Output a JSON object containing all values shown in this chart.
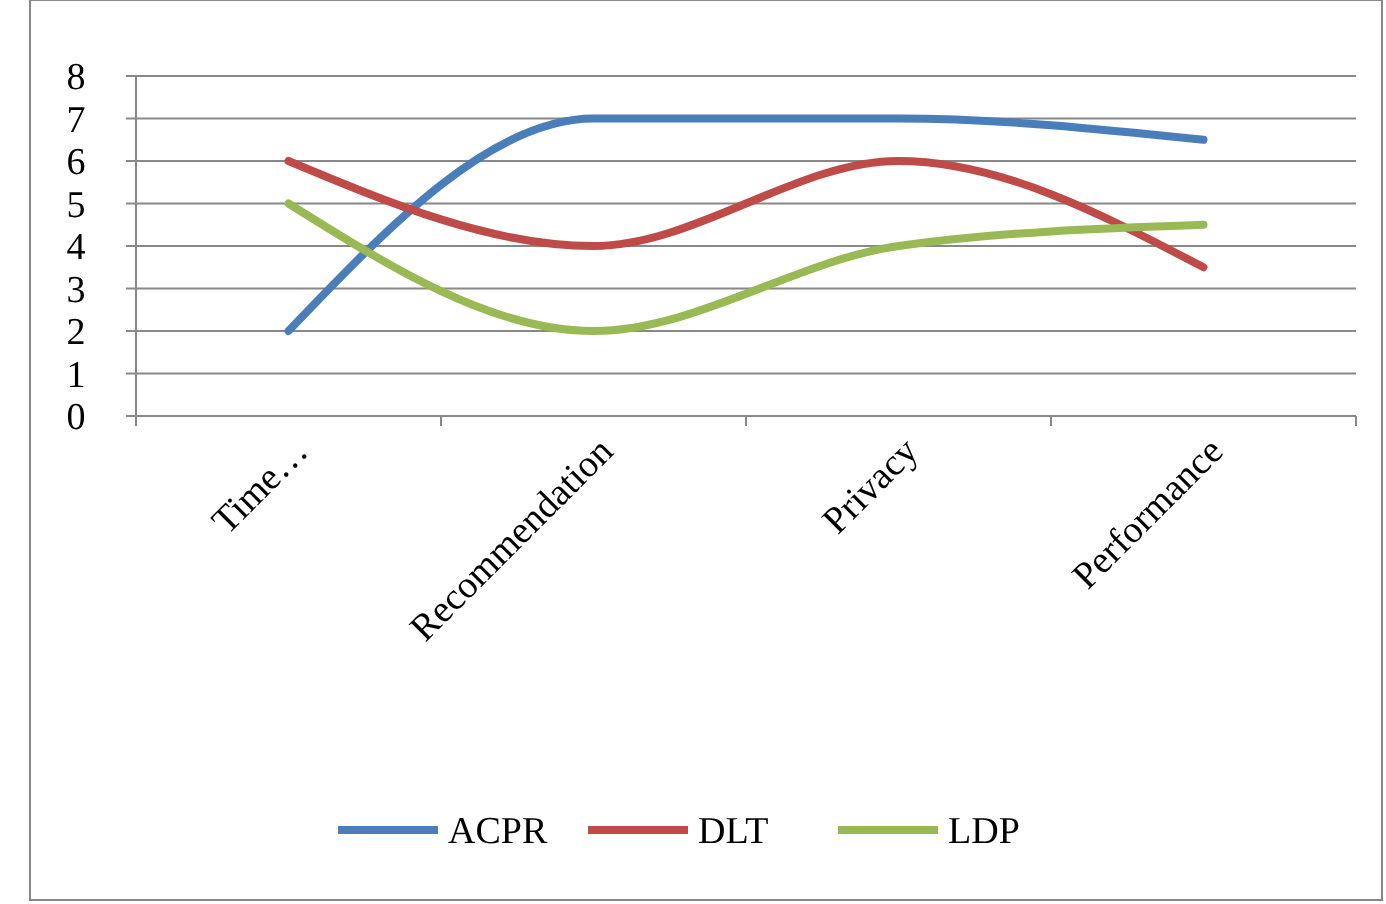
{
  "chart_data": {
    "type": "line",
    "categories": [
      "Time…",
      "Recommendation",
      "Privacy",
      "Performance"
    ],
    "series": [
      {
        "name": "ACPR",
        "color": "#4a7ebb",
        "values": [
          2,
          7,
          7,
          6.5
        ]
      },
      {
        "name": "DLT",
        "color": "#be4b48",
        "values": [
          6,
          4,
          6,
          3.5
        ]
      },
      {
        "name": "LDP",
        "color": "#98b954",
        "values": [
          5,
          2,
          4,
          4.5
        ]
      }
    ],
    "ylim": [
      0,
      8
    ],
    "yticks": [
      0,
      1,
      2,
      3,
      4,
      5,
      6,
      7,
      8
    ],
    "grid": "y",
    "legend": "bottom",
    "marker": "none",
    "line_style": "solid"
  }
}
